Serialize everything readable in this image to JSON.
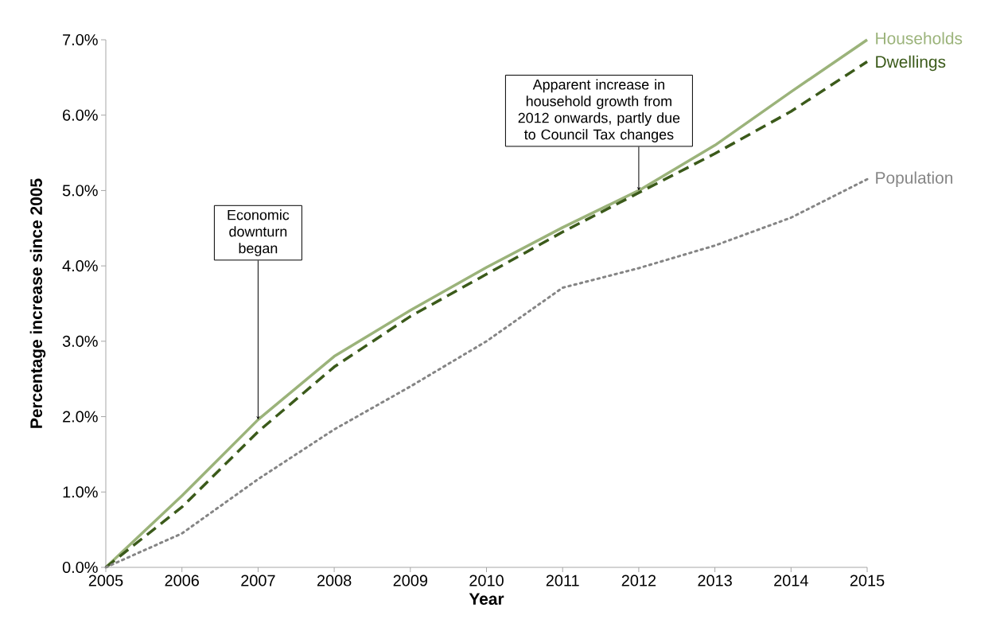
{
  "chart_data": {
    "type": "line",
    "xlabel": "Year",
    "ylabel": "Percentage increase since 2005",
    "x": [
      2005,
      2006,
      2007,
      2008,
      2009,
      2010,
      2011,
      2012,
      2013,
      2014,
      2015
    ],
    "series": [
      {
        "name": "Households",
        "color": "#9bb37a",
        "line_style": "solid",
        "values": [
          0,
          0.95,
          1.96,
          2.8,
          3.41,
          3.98,
          4.51,
          5.0,
          5.6,
          6.31,
          7.0
        ]
      },
      {
        "name": "Dwellings",
        "color": "#3b5a1a",
        "line_style": "dashed",
        "values": [
          0,
          0.8,
          1.8,
          2.66,
          3.33,
          3.89,
          4.45,
          4.97,
          5.49,
          6.05,
          6.71
        ]
      },
      {
        "name": "Population",
        "color": "#858585",
        "line_style": "dotted",
        "values": [
          0,
          0.45,
          1.17,
          1.83,
          2.4,
          3.0,
          3.71,
          3.97,
          4.27,
          4.64,
          5.15
        ]
      }
    ],
    "xlim": [
      2005,
      2015
    ],
    "xticks": [
      2005,
      2006,
      2007,
      2008,
      2009,
      2010,
      2011,
      2012,
      2013,
      2014,
      2015
    ],
    "ylim": [
      0,
      7
    ],
    "yticks": [
      {
        "value": 0,
        "label": "0.0%"
      },
      {
        "value": 1,
        "label": "1.0%"
      },
      {
        "value": 2,
        "label": "2.0%"
      },
      {
        "value": 3,
        "label": "3.0%"
      },
      {
        "value": 4,
        "label": "4.0%"
      },
      {
        "value": 5,
        "label": "5.0%"
      },
      {
        "value": 6,
        "label": "6.0%"
      },
      {
        "value": 7,
        "label": "7.0%"
      }
    ],
    "annotations": [
      {
        "text": "Economic downturn began",
        "x": 2007,
        "y": 1.96
      },
      {
        "text": "Apparent increase in household growth from 2012 onwards, partly due to Council Tax changes",
        "x": 2012,
        "y": 5.0
      }
    ],
    "grid": false,
    "legend": false,
    "marker": "none"
  }
}
